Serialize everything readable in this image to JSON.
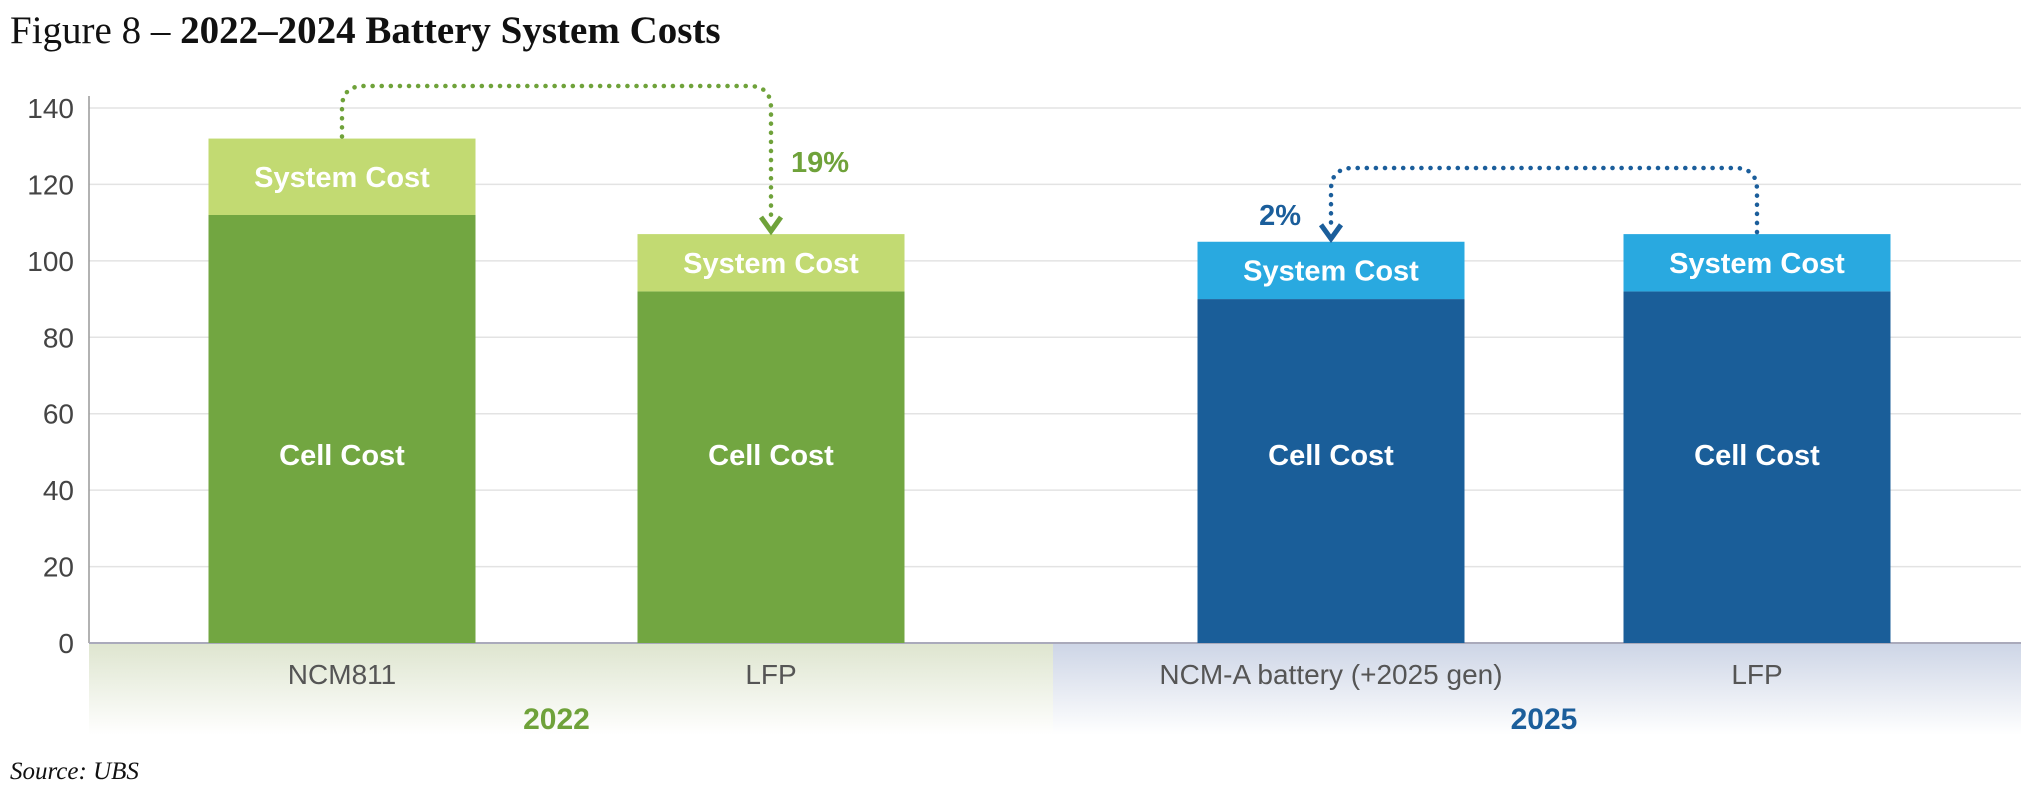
{
  "title": {
    "prefix": "Figure 8 – ",
    "main": "2022–2024 Battery System Costs"
  },
  "source": "Source: UBS",
  "colors": {
    "green_dark": "#72A641",
    "green_light": "#C2DA72",
    "green_text": "#6FA23A",
    "blue_dark": "#1A5E99",
    "blue_light": "#29A9E0",
    "blue_text": "#1B5E9B"
  },
  "chart_data": {
    "type": "bar",
    "stacked": true,
    "title": "2022–2024 Battery System Costs",
    "xlabel": "",
    "ylabel": "",
    "ylim": [
      0,
      140
    ],
    "yticks": [
      0,
      20,
      40,
      60,
      80,
      100,
      120,
      140
    ],
    "grid": true,
    "categories": [
      "NCM811",
      "LFP",
      "NCM-A battery (+2025 gen)",
      "LFP"
    ],
    "groups": [
      {
        "label": "2022",
        "categories": [
          0,
          1
        ],
        "color": "green"
      },
      {
        "label": "2025",
        "categories": [
          2,
          3
        ],
        "color": "blue"
      }
    ],
    "series": [
      {
        "name": "Cell Cost",
        "values": [
          112,
          92,
          90,
          92
        ]
      },
      {
        "name": "System Cost",
        "values": [
          20,
          15,
          15,
          15
        ]
      }
    ],
    "annotations": [
      {
        "text": "19%",
        "from": 0,
        "to": 1,
        "color": "green"
      },
      {
        "text": "2%",
        "from": 3,
        "to": 2,
        "color": "blue"
      }
    ]
  }
}
